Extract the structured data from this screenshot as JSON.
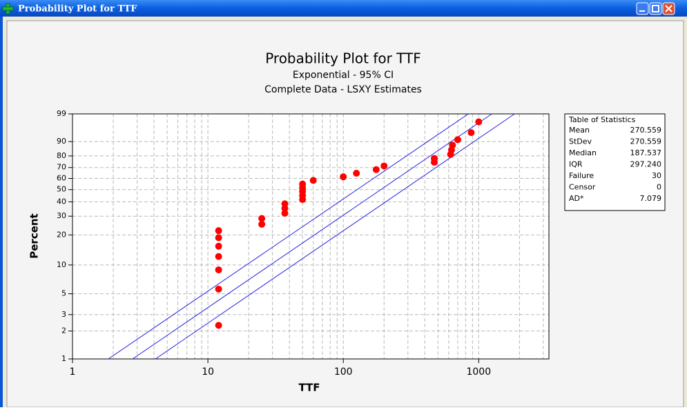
{
  "window": {
    "title": "Probability Plot for TTF"
  },
  "chart_data": {
    "type": "scatter",
    "title": "Probability Plot for TTF",
    "subtitle": [
      "Exponential - 95% CI",
      "Complete Data - LSXY Estimates"
    ],
    "x_label": "TTF",
    "y_label": "Percent",
    "x_scale": "log",
    "y_scale": "exponential-probability",
    "xlim": [
      1,
      3300
    ],
    "ylim": [
      1,
      99
    ],
    "xticks": [
      1,
      10,
      100,
      1000
    ],
    "x_minor_grid": [
      2,
      3,
      4,
      5,
      6,
      7,
      8,
      9,
      20,
      30,
      40,
      50,
      60,
      70,
      80,
      90,
      200,
      300,
      400,
      500,
      600,
      700,
      800,
      900,
      2000,
      3000
    ],
    "yticks": [
      1,
      2,
      3,
      5,
      10,
      20,
      30,
      40,
      50,
      60,
      70,
      80,
      90,
      99
    ],
    "grid": true,
    "series": [
      {
        "color": "#ff0000",
        "x": [
          12,
          12,
          12,
          12,
          12,
          12,
          12,
          25,
          25,
          37,
          37,
          37,
          50,
          50,
          50,
          50,
          50,
          60,
          100,
          125,
          175,
          200,
          470,
          470,
          620,
          630,
          640,
          700,
          880,
          1000
        ],
        "values": [
          2.3,
          5.6,
          8.9,
          12.2,
          15.5,
          18.8,
          22.0,
          25.3,
          28.6,
          31.9,
          35.2,
          38.5,
          41.8,
          45.1,
          48.4,
          51.6,
          54.9,
          58.2,
          61.5,
          64.8,
          68.1,
          71.4,
          74.7,
          78.0,
          81.2,
          84.5,
          87.8,
          91.1,
          94.4,
          97.7
        ]
      }
    ],
    "lines": [
      {
        "color": "#2020e0",
        "x": [
          1.84,
          838
        ],
        "values": [
          1,
          99
        ]
      },
      {
        "color": "#2020e0",
        "x": [
          2.78,
          1250
        ],
        "values": [
          1,
          99
        ]
      },
      {
        "color": "#2020e0",
        "x": [
          4.1,
          1841
        ],
        "values": [
          1,
          99
        ]
      }
    ],
    "stats": {
      "title": "Table of Statistics",
      "rows": [
        [
          "Mean",
          "270.559"
        ],
        [
          "StDev",
          "270.559"
        ],
        [
          "Median",
          "187.537"
        ],
        [
          "IQR",
          "297.240"
        ],
        [
          "Failure",
          "30"
        ],
        [
          "Censor",
          "0"
        ],
        [
          "AD*",
          "7.079"
        ]
      ]
    }
  }
}
